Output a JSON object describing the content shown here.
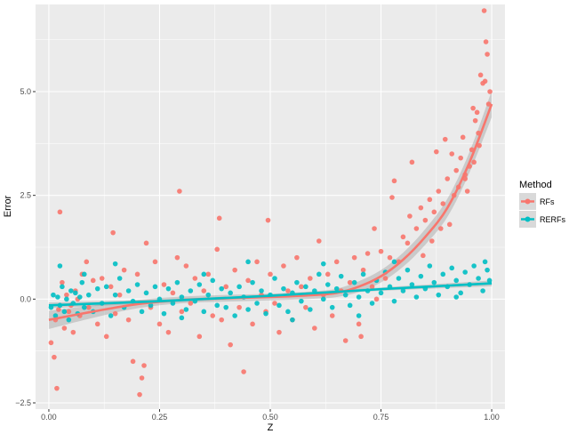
{
  "chart_data": {
    "type": "scatter",
    "xlabel": "Z",
    "ylabel": "Error",
    "xlim": [
      -0.03,
      1.03
    ],
    "ylim": [
      -2.65,
      7.1
    ],
    "x_ticks": [
      0.0,
      0.25,
      0.5,
      0.75,
      1.0
    ],
    "x_tick_labels": [
      "0.00",
      "0.25",
      "0.50",
      "0.75",
      "1.00"
    ],
    "y_ticks": [
      -2.5,
      0.0,
      2.5,
      5.0
    ],
    "y_tick_labels": [
      "−2.5",
      "0.0",
      "2.5",
      "5.0"
    ],
    "grid": true,
    "background": "#ebebeb",
    "legend": {
      "title": "Method",
      "position": "right",
      "entries": [
        "RFs",
        "RERFs"
      ]
    },
    "series": [
      {
        "name": "RFs",
        "color": "#f8766d",
        "points": [
          [
            0.005,
            -1.05
          ],
          [
            0.012,
            -1.4
          ],
          [
            0.015,
            -0.5
          ],
          [
            0.018,
            -2.15
          ],
          [
            0.022,
            -0.25
          ],
          [
            0.025,
            2.1
          ],
          [
            0.03,
            0.4
          ],
          [
            0.035,
            -0.7
          ],
          [
            0.04,
            0.1
          ],
          [
            0.045,
            -0.3
          ],
          [
            0.05,
            -0.15
          ],
          [
            0.055,
            -0.8
          ],
          [
            0.06,
            0.2
          ],
          [
            0.065,
            0.0
          ],
          [
            0.07,
            -0.4
          ],
          [
            0.075,
            0.6
          ],
          [
            0.085,
            0.9
          ],
          [
            0.09,
            -0.2
          ],
          [
            0.1,
            0.45
          ],
          [
            0.11,
            -0.6
          ],
          [
            0.12,
            0.5
          ],
          [
            0.13,
            -0.9
          ],
          [
            0.14,
            0.3
          ],
          [
            0.145,
            1.6
          ],
          [
            0.15,
            -0.35
          ],
          [
            0.16,
            0.1
          ],
          [
            0.17,
            0.7
          ],
          [
            0.18,
            -0.5
          ],
          [
            0.19,
            -1.5
          ],
          [
            0.2,
            0.6
          ],
          [
            0.205,
            -2.3
          ],
          [
            0.21,
            -1.9
          ],
          [
            0.215,
            -1.6
          ],
          [
            0.22,
            1.35
          ],
          [
            0.23,
            -0.2
          ],
          [
            0.24,
            0.9
          ],
          [
            0.25,
            -0.6
          ],
          [
            0.26,
            0.35
          ],
          [
            0.27,
            -0.8
          ],
          [
            0.28,
            0.15
          ],
          [
            0.29,
            1.0
          ],
          [
            0.295,
            2.6
          ],
          [
            0.3,
            -0.3
          ],
          [
            0.31,
            0.8
          ],
          [
            0.32,
            -0.1
          ],
          [
            0.33,
            0.5
          ],
          [
            0.34,
            -0.9
          ],
          [
            0.35,
            0.2
          ],
          [
            0.36,
            0.6
          ],
          [
            0.37,
            -0.4
          ],
          [
            0.38,
            1.2
          ],
          [
            0.385,
            1.95
          ],
          [
            0.39,
            -0.5
          ],
          [
            0.4,
            0.3
          ],
          [
            0.41,
            -1.1
          ],
          [
            0.42,
            0.7
          ],
          [
            0.43,
            -0.2
          ],
          [
            0.44,
            -1.75
          ],
          [
            0.45,
            0.45
          ],
          [
            0.46,
            -0.6
          ],
          [
            0.47,
            0.9
          ],
          [
            0.48,
            0.1
          ],
          [
            0.49,
            -0.3
          ],
          [
            0.495,
            1.9
          ],
          [
            0.5,
            0.6
          ],
          [
            0.51,
            -0.1
          ],
          [
            0.52,
            -0.8
          ],
          [
            0.53,
            0.8
          ],
          [
            0.54,
            0.2
          ],
          [
            0.55,
            -0.5
          ],
          [
            0.56,
            1.0
          ],
          [
            0.57,
            0.3
          ],
          [
            0.58,
            -0.2
          ],
          [
            0.59,
            0.5
          ],
          [
            0.6,
            -0.7
          ],
          [
            0.61,
            1.4
          ],
          [
            0.62,
            0.1
          ],
          [
            0.63,
            0.6
          ],
          [
            0.64,
            -0.4
          ],
          [
            0.65,
            0.9
          ],
          [
            0.66,
            0.2
          ],
          [
            0.67,
            -1.0
          ],
          [
            0.68,
            0.4
          ],
          [
            0.69,
            1.0
          ],
          [
            0.7,
            -0.6
          ],
          [
            0.705,
            -0.9
          ],
          [
            0.71,
            0.7
          ],
          [
            0.72,
            1.1
          ],
          [
            0.73,
            0.3
          ],
          [
            0.735,
            1.7
          ],
          [
            0.74,
            0.0
          ],
          [
            0.75,
            1.15
          ],
          [
            0.76,
            0.5
          ],
          [
            0.77,
            1.0
          ],
          [
            0.775,
            2.45
          ],
          [
            0.78,
            2.85
          ],
          [
            0.79,
            0.9
          ],
          [
            0.8,
            1.5
          ],
          [
            0.81,
            1.35
          ],
          [
            0.815,
            2.0
          ],
          [
            0.82,
            3.3
          ],
          [
            0.83,
            1.7
          ],
          [
            0.84,
            2.2
          ],
          [
            0.845,
            1.05
          ],
          [
            0.85,
            1.9
          ],
          [
            0.86,
            2.4
          ],
          [
            0.865,
            1.4
          ],
          [
            0.87,
            2.1
          ],
          [
            0.875,
            3.55
          ],
          [
            0.88,
            2.6
          ],
          [
            0.885,
            1.7
          ],
          [
            0.89,
            2.3
          ],
          [
            0.895,
            3.85
          ],
          [
            0.9,
            2.9
          ],
          [
            0.905,
            1.8
          ],
          [
            0.91,
            3.5
          ],
          [
            0.915,
            2.5
          ],
          [
            0.92,
            3.1
          ],
          [
            0.925,
            2.7
          ],
          [
            0.93,
            3.4
          ],
          [
            0.935,
            3.9
          ],
          [
            0.94,
            3.0
          ],
          [
            0.945,
            2.6
          ],
          [
            0.95,
            3.2
          ],
          [
            0.955,
            3.6
          ],
          [
            0.96,
            3.3
          ],
          [
            0.963,
            4.3
          ],
          [
            0.967,
            4.5
          ],
          [
            0.97,
            4.0
          ],
          [
            0.975,
            5.4
          ],
          [
            0.98,
            5.2
          ],
          [
            0.983,
            6.95
          ],
          [
            0.987,
            6.2
          ],
          [
            0.99,
            5.9
          ],
          [
            0.993,
            4.7
          ],
          [
            0.996,
            5.0
          ],
          [
            0.94,
            2.9
          ],
          [
            0.958,
            4.6
          ],
          [
            0.972,
            3.7
          ],
          [
            0.985,
            5.25
          ]
        ]
      },
      {
        "name": "RERFs",
        "color": "#00bfc4",
        "points": [
          [
            0.005,
            -0.2
          ],
          [
            0.01,
            0.1
          ],
          [
            0.015,
            -0.4
          ],
          [
            0.02,
            0.05
          ],
          [
            0.025,
            -0.15
          ],
          [
            0.03,
            0.3
          ],
          [
            0.035,
            -0.3
          ],
          [
            0.04,
            0.0
          ],
          [
            0.045,
            -0.5
          ],
          [
            0.05,
            0.2
          ],
          [
            0.055,
            -0.1
          ],
          [
            0.06,
            0.15
          ],
          [
            0.065,
            -0.35
          ],
          [
            0.07,
            0.05
          ],
          [
            0.075,
            0.4
          ],
          [
            0.08,
            -0.2
          ],
          [
            0.09,
            0.1
          ],
          [
            0.1,
            -0.3
          ],
          [
            0.11,
            0.25
          ],
          [
            0.12,
            -0.1
          ],
          [
            0.13,
            0.3
          ],
          [
            0.14,
            -0.4
          ],
          [
            0.15,
            0.1
          ],
          [
            0.16,
            0.5
          ],
          [
            0.17,
            -0.2
          ],
          [
            0.18,
            0.2
          ],
          [
            0.19,
            -0.05
          ],
          [
            0.2,
            0.35
          ],
          [
            0.21,
            -0.3
          ],
          [
            0.22,
            0.15
          ],
          [
            0.23,
            -0.15
          ],
          [
            0.24,
            0.3
          ],
          [
            0.25,
            0.0
          ],
          [
            0.26,
            -0.35
          ],
          [
            0.27,
            0.25
          ],
          [
            0.28,
            -0.1
          ],
          [
            0.29,
            0.4
          ],
          [
            0.3,
            0.05
          ],
          [
            0.31,
            -0.25
          ],
          [
            0.32,
            0.2
          ],
          [
            0.33,
            -0.05
          ],
          [
            0.34,
            0.35
          ],
          [
            0.35,
            -0.3
          ],
          [
            0.36,
            0.1
          ],
          [
            0.37,
            0.45
          ],
          [
            0.38,
            -0.15
          ],
          [
            0.39,
            0.25
          ],
          [
            0.4,
            -0.2
          ],
          [
            0.41,
            0.15
          ],
          [
            0.42,
            -0.4
          ],
          [
            0.43,
            0.3
          ],
          [
            0.44,
            0.05
          ],
          [
            0.45,
            -0.25
          ],
          [
            0.46,
            0.4
          ],
          [
            0.47,
            -0.1
          ],
          [
            0.48,
            0.2
          ],
          [
            0.49,
            -0.35
          ],
          [
            0.5,
            0.1
          ],
          [
            0.51,
            0.5
          ],
          [
            0.52,
            -0.15
          ],
          [
            0.53,
            0.25
          ],
          [
            0.54,
            -0.3
          ],
          [
            0.55,
            0.15
          ],
          [
            0.56,
            0.4
          ],
          [
            0.57,
            -0.05
          ],
          [
            0.58,
            0.3
          ],
          [
            0.59,
            -0.25
          ],
          [
            0.6,
            0.2
          ],
          [
            0.61,
            0.6
          ],
          [
            0.62,
            0.0
          ],
          [
            0.63,
            0.35
          ],
          [
            0.64,
            -0.2
          ],
          [
            0.65,
            0.25
          ],
          [
            0.66,
            0.55
          ],
          [
            0.67,
            0.1
          ],
          [
            0.68,
            -0.15
          ],
          [
            0.69,
            0.4
          ],
          [
            0.7,
            0.05
          ],
          [
            0.71,
            0.6
          ],
          [
            0.72,
            0.2
          ],
          [
            0.73,
            -0.1
          ],
          [
            0.74,
            0.45
          ],
          [
            0.75,
            0.15
          ],
          [
            0.76,
            0.65
          ],
          [
            0.77,
            0.3
          ],
          [
            0.78,
            -0.05
          ],
          [
            0.79,
            0.5
          ],
          [
            0.8,
            0.2
          ],
          [
            0.81,
            0.7
          ],
          [
            0.82,
            0.35
          ],
          [
            0.83,
            0.05
          ],
          [
            0.84,
            0.55
          ],
          [
            0.85,
            0.25
          ],
          [
            0.86,
            0.8
          ],
          [
            0.87,
            0.4
          ],
          [
            0.88,
            0.1
          ],
          [
            0.89,
            0.6
          ],
          [
            0.9,
            0.3
          ],
          [
            0.91,
            0.75
          ],
          [
            0.92,
            0.45
          ],
          [
            0.93,
            0.15
          ],
          [
            0.94,
            0.65
          ],
          [
            0.95,
            0.35
          ],
          [
            0.96,
            0.8
          ],
          [
            0.97,
            0.5
          ],
          [
            0.98,
            0.2
          ],
          [
            0.99,
            0.7
          ],
          [
            0.995,
            0.45
          ],
          [
            0.15,
            0.85
          ],
          [
            0.025,
            0.8
          ],
          [
            0.45,
            0.9
          ],
          [
            0.62,
            0.85
          ],
          [
            0.3,
            -0.45
          ],
          [
            0.55,
            -0.5
          ],
          [
            0.7,
            -0.4
          ],
          [
            0.08,
            0.6
          ],
          [
            0.35,
            0.6
          ],
          [
            0.78,
            0.9
          ],
          [
            0.92,
            0.05
          ],
          [
            0.985,
            0.9
          ]
        ]
      }
    ],
    "trend_lines": [
      {
        "series": "RFs",
        "color": "#f8766d",
        "points": [
          [
            0.0,
            -0.5
          ],
          [
            0.1,
            -0.3
          ],
          [
            0.2,
            -0.12
          ],
          [
            0.3,
            -0.02
          ],
          [
            0.4,
            0.02
          ],
          [
            0.5,
            0.05
          ],
          [
            0.6,
            0.1
          ],
          [
            0.65,
            0.15
          ],
          [
            0.7,
            0.3
          ],
          [
            0.75,
            0.55
          ],
          [
            0.8,
            0.95
          ],
          [
            0.85,
            1.5
          ],
          [
            0.9,
            2.2
          ],
          [
            0.95,
            3.3
          ],
          [
            1.0,
            4.7
          ]
        ],
        "band": [
          0.22,
          0.15,
          0.1,
          0.08,
          0.08,
          0.08,
          0.09,
          0.1,
          0.13,
          0.15,
          0.17,
          0.19,
          0.22,
          0.25,
          0.32
        ]
      },
      {
        "series": "RERFs",
        "color": "#00bfc4",
        "points": [
          [
            0.0,
            -0.15
          ],
          [
            0.25,
            -0.05
          ],
          [
            0.5,
            0.08
          ],
          [
            0.75,
            0.24
          ],
          [
            1.0,
            0.38
          ]
        ],
        "band": [
          0.07,
          0.04,
          0.03,
          0.04,
          0.07
        ]
      }
    ]
  }
}
